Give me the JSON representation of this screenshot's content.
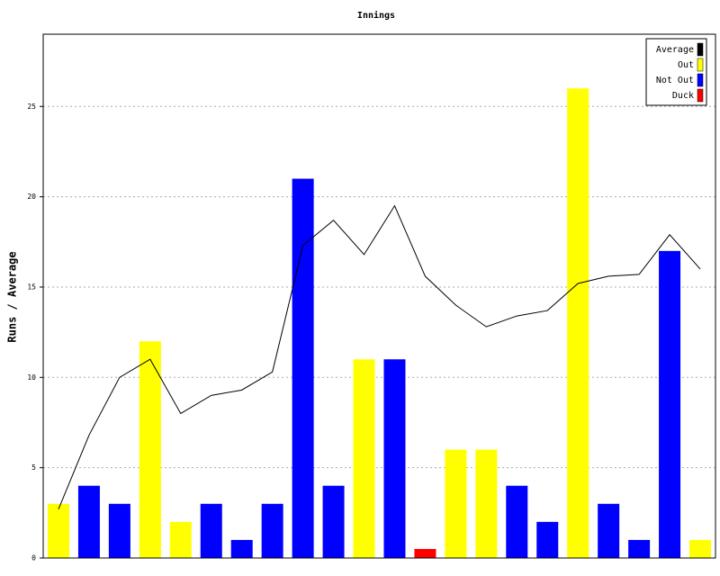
{
  "chart_data": {
    "type": "bar",
    "title": "Innings",
    "ylabel": "Runs / Average",
    "categories": [
      null,
      null,
      null,
      null,
      null,
      null,
      null,
      null,
      null,
      null,
      null,
      null,
      null,
      null,
      null,
      null,
      null,
      null,
      null,
      null,
      null,
      null
    ],
    "ylim": [
      0,
      29
    ],
    "yticks": [
      0,
      5,
      10,
      15,
      20,
      25
    ],
    "grid": true,
    "legend": "top-right",
    "series": [
      {
        "name": "Average",
        "color": "#000000",
        "type": "line",
        "values": [
          2.7,
          6.8,
          10,
          11,
          8,
          9,
          9.3,
          10.3,
          17.3,
          18.7,
          16.8,
          19.5,
          15.6,
          14,
          12.8,
          13.4,
          13.7,
          15.2,
          15.6,
          15.7,
          17.9,
          16
        ]
      },
      {
        "name": "Out",
        "color": "#ffff00",
        "type": "bar",
        "values": [
          3,
          null,
          null,
          12,
          2,
          null,
          null,
          null,
          null,
          null,
          11,
          null,
          null,
          6,
          6,
          null,
          null,
          26,
          null,
          null,
          null,
          1
        ]
      },
      {
        "name": "Not Out",
        "color": "#0000ff",
        "type": "bar",
        "values": [
          null,
          4,
          3,
          null,
          null,
          3,
          1,
          3,
          21,
          4,
          null,
          11,
          null,
          null,
          null,
          4,
          2,
          null,
          3,
          1,
          17,
          null
        ]
      },
      {
        "name": "Duck",
        "color": "#ff0000",
        "type": "bar",
        "values": [
          null,
          null,
          null,
          null,
          null,
          null,
          null,
          null,
          null,
          null,
          null,
          null,
          0.5,
          null,
          null,
          null,
          null,
          null,
          null,
          null,
          null,
          null
        ]
      }
    ]
  }
}
